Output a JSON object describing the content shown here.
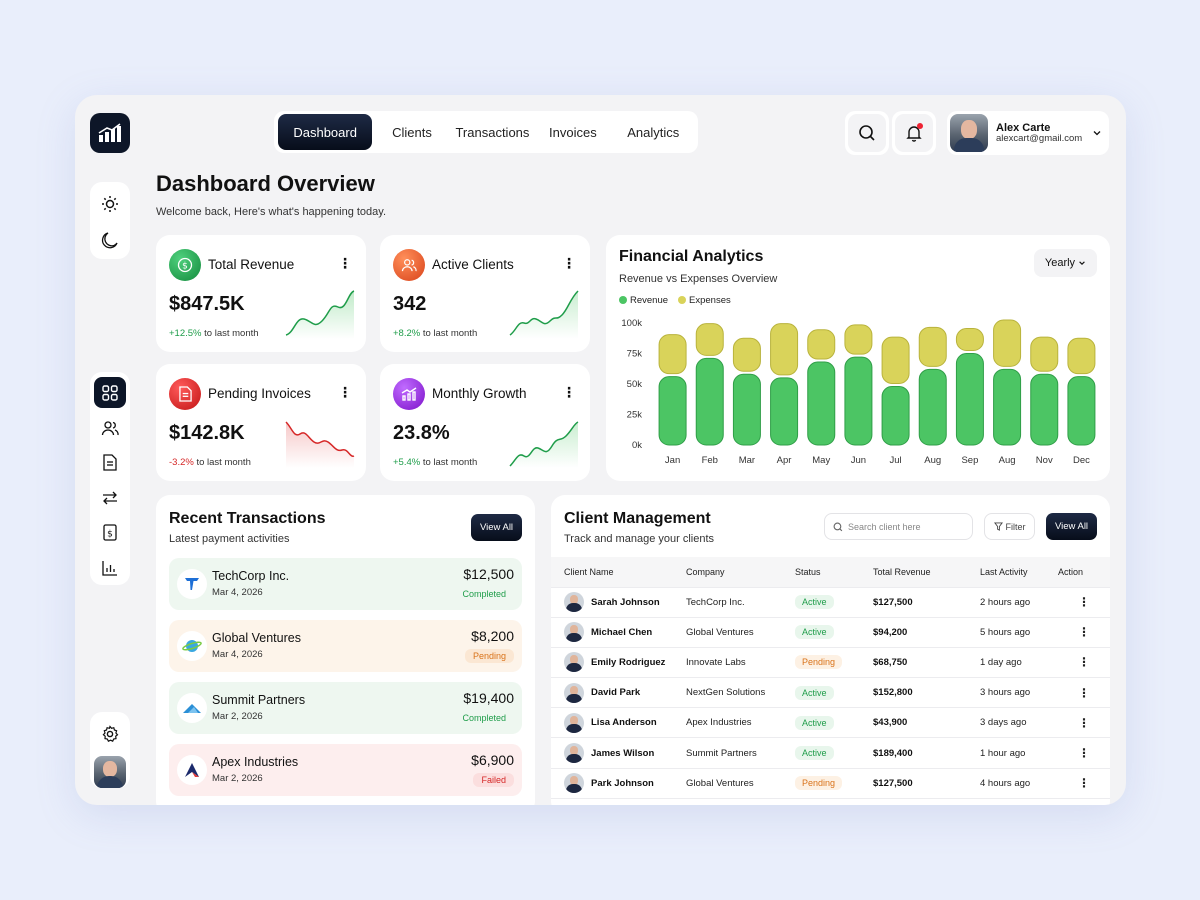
{
  "nav": {
    "items": [
      "Dashboard",
      "Clients",
      "Transactions",
      "Invoices",
      "Analytics"
    ]
  },
  "user": {
    "name": "Alex Carte",
    "email": "alexcart@gmail.com"
  },
  "header": {
    "title": "Dashboard Overview",
    "subtitle": "Welcome back, Here's what's happening today."
  },
  "stats": [
    {
      "label": "Total Revenue",
      "value": "$847.5K",
      "change": "+12.5%",
      "change_suffix": "to last month",
      "color": "#1f9d4a",
      "icon": "revenue-icon",
      "trend": "up"
    },
    {
      "label": "Active Clients",
      "value": "342",
      "change": "+8.2%",
      "change_suffix": "to last month",
      "color": "#e8622a",
      "icon": "users-icon",
      "trend": "up"
    },
    {
      "label": "Pending Invoices",
      "value": "$142.8K",
      "change": "-3.2%",
      "change_suffix": "to last month",
      "color": "#d62828",
      "icon": "invoice-icon",
      "trend": "down"
    },
    {
      "label": "Monthly Growth",
      "value": "23.8%",
      "change": "+5.4%",
      "change_suffix": "to last month",
      "color": "#8a2be2",
      "icon": "growth-icon",
      "trend": "up"
    }
  ],
  "financial": {
    "title": "Financial Analytics",
    "subtitle": "Revenue vs Expenses Overview",
    "period": "Yearly"
  },
  "chart_data": {
    "type": "bar",
    "stacked": true,
    "categories": [
      "Jan",
      "Feb",
      "Mar",
      "Apr",
      "May",
      "Jun",
      "Jul",
      "Aug",
      "Sep",
      "Aug",
      "Nov",
      "Dec"
    ],
    "series": [
      {
        "name": "Revenue",
        "color": "#4cc564",
        "values": [
          56,
          71,
          58,
          55,
          68,
          72,
          48,
          62,
          75,
          62,
          58,
          56
        ]
      },
      {
        "name": "Expenses",
        "color": "#d9d35a",
        "values": [
          32,
          26,
          27,
          42,
          24,
          24,
          38,
          32,
          18,
          38,
          28,
          29
        ]
      }
    ],
    "y_ticks": [
      "0k",
      "25k",
      "50k",
      "75k",
      "100k"
    ],
    "ylim": [
      0,
      100
    ],
    "legend": "top-left"
  },
  "transactions": {
    "title": "Recent Transactions",
    "subtitle": "Latest payment activities",
    "view_all": "View All",
    "items": [
      {
        "name": "TechCorp Inc.",
        "date": "Mar 4, 2026",
        "amount": "$12,500",
        "status": "Completed"
      },
      {
        "name": "Global Ventures",
        "date": "Mar 4, 2026",
        "amount": "$8,200",
        "status": "Pending"
      },
      {
        "name": "Summit Partners",
        "date": "Mar 2, 2026",
        "amount": "$19,400",
        "status": "Completed"
      },
      {
        "name": "Apex Industries",
        "date": "Mar 2, 2026",
        "amount": "$6,900",
        "status": "Failed"
      }
    ]
  },
  "clients": {
    "title": "Client Management",
    "subtitle": "Track and manage your clients",
    "search_placeholder": "Search client here",
    "filter": "Filter",
    "view_all": "View All",
    "columns": [
      "Client Name",
      "Company",
      "Status",
      "Total Revenue",
      "Last Activity",
      "Action"
    ],
    "rows": [
      {
        "name": "Sarah Johnson",
        "company": "TechCorp Inc.",
        "status": "Active",
        "revenue": "$127,500",
        "activity": "2 hours ago"
      },
      {
        "name": "Michael Chen",
        "company": "Global Ventures",
        "status": "Active",
        "revenue": "$94,200",
        "activity": "5 hours ago"
      },
      {
        "name": "Emily Rodriguez",
        "company": "Innovate Labs",
        "status": "Pending",
        "revenue": "$68,750",
        "activity": "1 day ago"
      },
      {
        "name": "David Park",
        "company": "NextGen Solutions",
        "status": "Active",
        "revenue": "$152,800",
        "activity": "3 hours ago"
      },
      {
        "name": "Lisa Anderson",
        "company": "Apex Industries",
        "status": "Active",
        "revenue": "$43,900",
        "activity": "3 days ago"
      },
      {
        "name": "James Wilson",
        "company": "Summit Partners",
        "status": "Active",
        "revenue": "$189,400",
        "activity": "1 hour ago"
      },
      {
        "name": "Park Johnson",
        "company": "Global Ventures",
        "status": "Pending",
        "revenue": "$127,500",
        "activity": "4 hours ago"
      }
    ]
  }
}
